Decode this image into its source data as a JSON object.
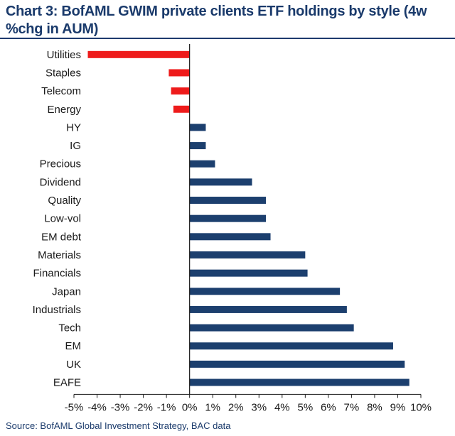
{
  "title": "Chart 3: BofAML GWIM private clients ETF holdings by style (4w %chg in AUM)",
  "source": "Source: BofAML Global Investment Strategy, BAC data",
  "colors": {
    "negative": "#ee1b1b",
    "positive": "#1c3f6e",
    "text": "#1a1a1a",
    "title": "#1a3a6b"
  },
  "chart_data": {
    "type": "bar",
    "orientation": "horizontal",
    "title": "Chart 3: BofAML GWIM private clients ETF holdings by style (4w %chg in AUM)",
    "xlabel": "",
    "ylabel": "",
    "xlim": [
      -5,
      10
    ],
    "x_ticks": [
      -5,
      -4,
      -3,
      -2,
      -1,
      0,
      1,
      2,
      3,
      4,
      5,
      6,
      7,
      8,
      9,
      10
    ],
    "x_tick_labels": [
      "-5%",
      "-4%",
      "-3%",
      "-2%",
      "-1%",
      "0%",
      "1%",
      "2%",
      "3%",
      "4%",
      "5%",
      "6%",
      "7%",
      "8%",
      "9%",
      "10%"
    ],
    "categories": [
      "Utilities",
      "Staples",
      "Telecom",
      "Energy",
      "HY",
      "IG",
      "Precious",
      "Dividend",
      "Quality",
      "Low-vol",
      "EM debt",
      "Materials",
      "Financials",
      "Japan",
      "Industrials",
      "Tech",
      "EM",
      "UK",
      "EAFE"
    ],
    "values": [
      -4.4,
      -0.9,
      -0.8,
      -0.7,
      0.7,
      0.7,
      1.1,
      2.7,
      3.3,
      3.3,
      3.5,
      5.0,
      5.1,
      6.5,
      6.8,
      7.1,
      8.8,
      9.3,
      9.5
    ],
    "grid": false,
    "legend": "none"
  }
}
